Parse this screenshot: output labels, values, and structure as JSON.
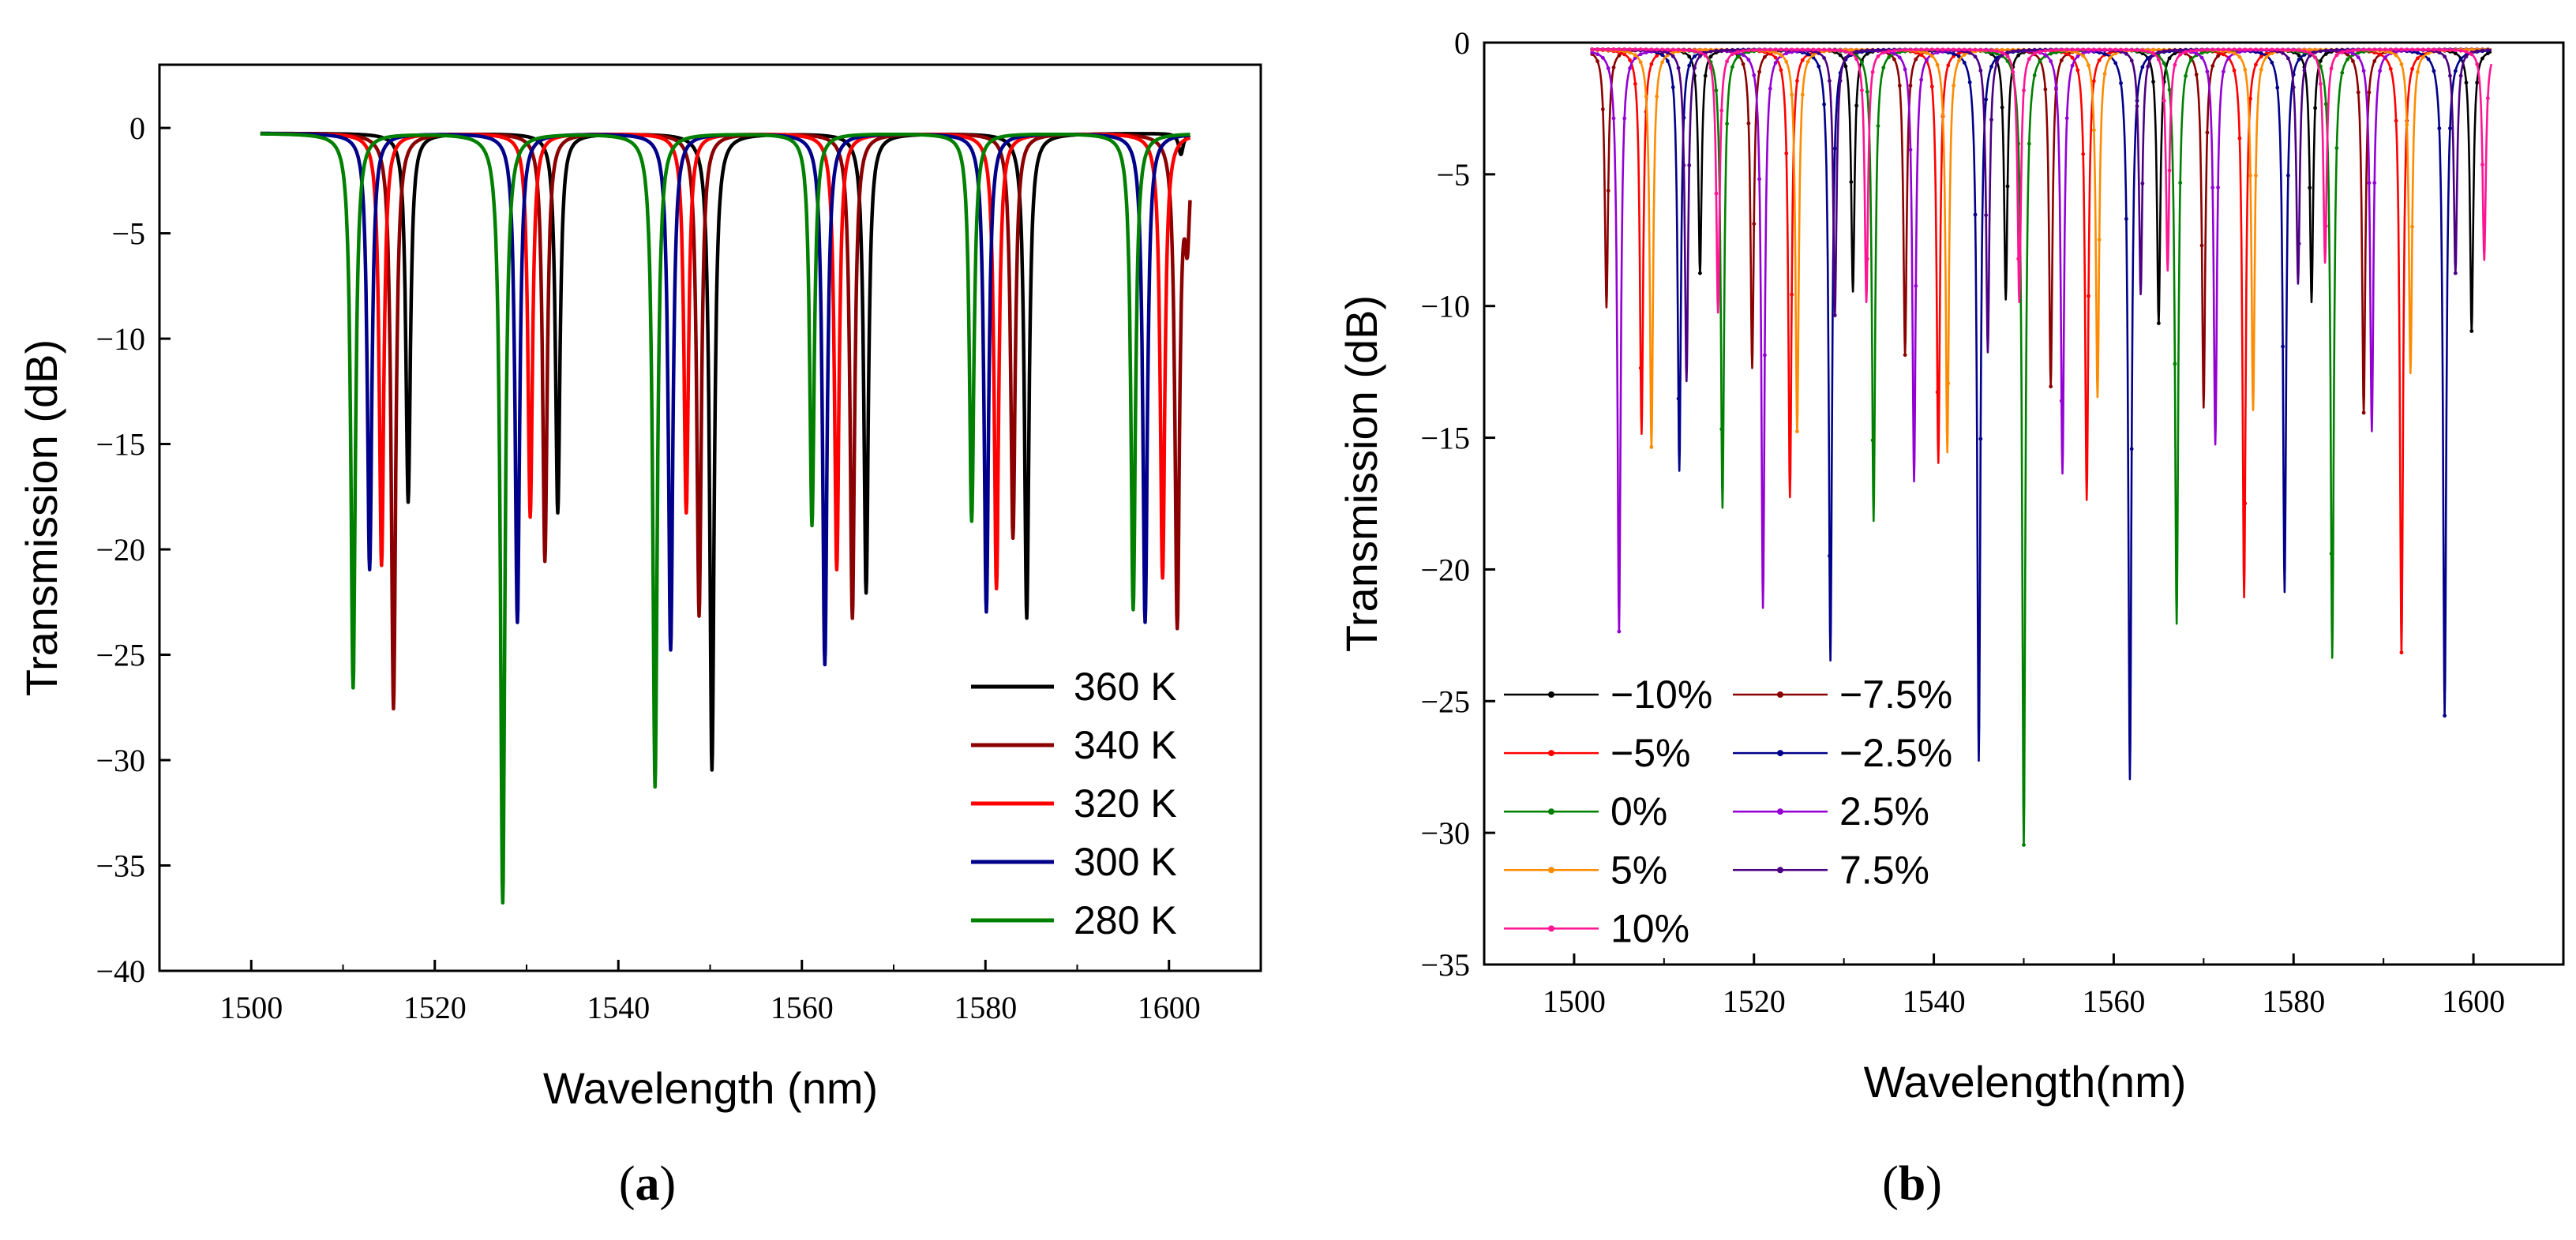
{
  "chart_data": [
    {
      "type": "line",
      "panel_label": "a",
      "xlabel": "Wavelength (nm)",
      "ylabel": "Transmission (dB)",
      "xlim": [
        1490,
        1610
      ],
      "ylim": [
        -40,
        3
      ],
      "xticks": [
        1500,
        1520,
        1540,
        1560,
        1580,
        1600
      ],
      "yticks": [
        0,
        -5,
        -10,
        -15,
        -20,
        -25,
        -30,
        -35,
        -40
      ],
      "legend_position": "bottom-right",
      "series": [
        {
          "name": "360 K",
          "color": "#000000",
          "dips": [
            [
              1517.1,
              -17.5
            ],
            [
              1533.4,
              -18.0
            ],
            [
              1550.2,
              -30.2
            ],
            [
              1567.0,
              -21.8
            ],
            [
              1584.5,
              -23.0
            ],
            [
              1601.3,
              -1.0
            ]
          ]
        },
        {
          "name": "340 K",
          "color": "#8b0000",
          "dips": [
            [
              1515.5,
              -27.3
            ],
            [
              1532.0,
              -20.3
            ],
            [
              1548.8,
              -22.9
            ],
            [
              1565.5,
              -23.0
            ],
            [
              1583.0,
              -19.2
            ],
            [
              1600.9,
              -23.2
            ],
            [
              1602.0,
              -4.3
            ]
          ]
        },
        {
          "name": "320 K",
          "color": "#ff0000",
          "dips": [
            [
              1514.2,
              -20.5
            ],
            [
              1530.4,
              -18.2
            ],
            [
              1547.4,
              -18.0
            ],
            [
              1563.8,
              -20.7
            ],
            [
              1581.2,
              -21.6
            ],
            [
              1599.3,
              -21.1
            ]
          ]
        },
        {
          "name": "300 K",
          "color": "#00008b",
          "dips": [
            [
              1512.9,
              -20.7
            ],
            [
              1529.0,
              -23.2
            ],
            [
              1545.7,
              -24.5
            ],
            [
              1562.5,
              -25.2
            ],
            [
              1580.1,
              -22.7
            ],
            [
              1597.4,
              -23.2
            ]
          ]
        },
        {
          "name": "280 K",
          "color": "#008000",
          "dips": [
            [
              1511.1,
              -26.3
            ],
            [
              1527.4,
              -36.5
            ],
            [
              1544.0,
              -31.0
            ],
            [
              1561.1,
              -18.6
            ],
            [
              1578.5,
              -18.4
            ],
            [
              1596.1,
              -22.6
            ]
          ]
        }
      ]
    },
    {
      "type": "line",
      "panel_label": "b",
      "xlabel": "Wavelength(nm)",
      "ylabel": "Transmission (dB)",
      "xlim": [
        1490,
        1610
      ],
      "ylim": [
        -35,
        0
      ],
      "xticks": [
        1500,
        1520,
        1540,
        1560,
        1580,
        1600
      ],
      "yticks": [
        0,
        -5,
        -10,
        -15,
        -20,
        -25,
        -30,
        -35
      ],
      "legend_position": "bottom-left",
      "series": [
        {
          "name": "−10%",
          "color": "#000000",
          "dips": [
            [
              1514.0,
              -8.5
            ],
            [
              1531.0,
              -9.2
            ],
            [
              1548.0,
              -9.5
            ],
            [
              1565.0,
              -10.4
            ],
            [
              1582.0,
              -9.6
            ],
            [
              1599.8,
              -10.7
            ]
          ]
        },
        {
          "name": "−7.5%",
          "color": "#8b0000",
          "dips": [
            [
              1503.6,
              -9.8
            ],
            [
              1519.8,
              -12.1
            ],
            [
              1536.8,
              -11.6
            ],
            [
              1553.0,
              -12.8
            ],
            [
              1570.0,
              -13.6
            ],
            [
              1587.8,
              -13.8
            ]
          ]
        },
        {
          "name": "−5%",
          "color": "#ff0000",
          "dips": [
            [
              1507.5,
              -14.6
            ],
            [
              1524.0,
              -17.0
            ],
            [
              1540.5,
              -15.7
            ],
            [
              1557.0,
              -17.1
            ],
            [
              1574.5,
              -20.8
            ],
            [
              1592.0,
              -22.9
            ]
          ]
        },
        {
          "name": "−2.5%",
          "color": "#00008b",
          "dips": [
            [
              1511.7,
              -16.0
            ],
            [
              1528.5,
              -23.2
            ],
            [
              1545.0,
              -27.0
            ],
            [
              1561.8,
              -27.7
            ],
            [
              1579.0,
              -20.6
            ],
            [
              1596.8,
              -25.3
            ]
          ]
        },
        {
          "name": "0%",
          "color": "#008000",
          "dips": [
            [
              1516.5,
              -17.4
            ],
            [
              1533.3,
              -17.9
            ],
            [
              1550.0,
              -30.2
            ],
            [
              1567.0,
              -21.8
            ],
            [
              1584.3,
              -23.1
            ]
          ]
        },
        {
          "name": "2.5%",
          "color": "#9400d3",
          "dips": [
            [
              1505.0,
              -22.1
            ],
            [
              1521.0,
              -21.2
            ],
            [
              1537.8,
              -16.4
            ],
            [
              1554.3,
              -16.1
            ],
            [
              1571.3,
              -15.0
            ],
            [
              1588.7,
              -14.5
            ]
          ]
        },
        {
          "name": "5%",
          "color": "#ff8c00",
          "dips": [
            [
              1508.6,
              -15.1
            ],
            [
              1524.8,
              -14.5
            ],
            [
              1541.5,
              -15.3
            ],
            [
              1558.2,
              -13.2
            ],
            [
              1575.5,
              -13.7
            ],
            [
              1593.0,
              -12.3
            ]
          ]
        },
        {
          "name": "7.5%",
          "color": "#4b0082",
          "dips": [
            [
              1512.5,
              -12.6
            ],
            [
              1529.0,
              -10.1
            ],
            [
              1546.0,
              -11.5
            ],
            [
              1563.0,
              -9.3
            ],
            [
              1580.5,
              -8.9
            ],
            [
              1598.0,
              -8.5
            ]
          ]
        },
        {
          "name": "10%",
          "color": "#ff1493",
          "dips": [
            [
              1516.0,
              -10.0
            ],
            [
              1532.5,
              -9.6
            ],
            [
              1549.5,
              -9.6
            ],
            [
              1566.0,
              -8.4
            ],
            [
              1583.5,
              -8.1
            ],
            [
              1601.2,
              -8.0
            ]
          ]
        }
      ]
    }
  ],
  "panel_captions": {
    "a": "(a)",
    "b": "(b)"
  }
}
